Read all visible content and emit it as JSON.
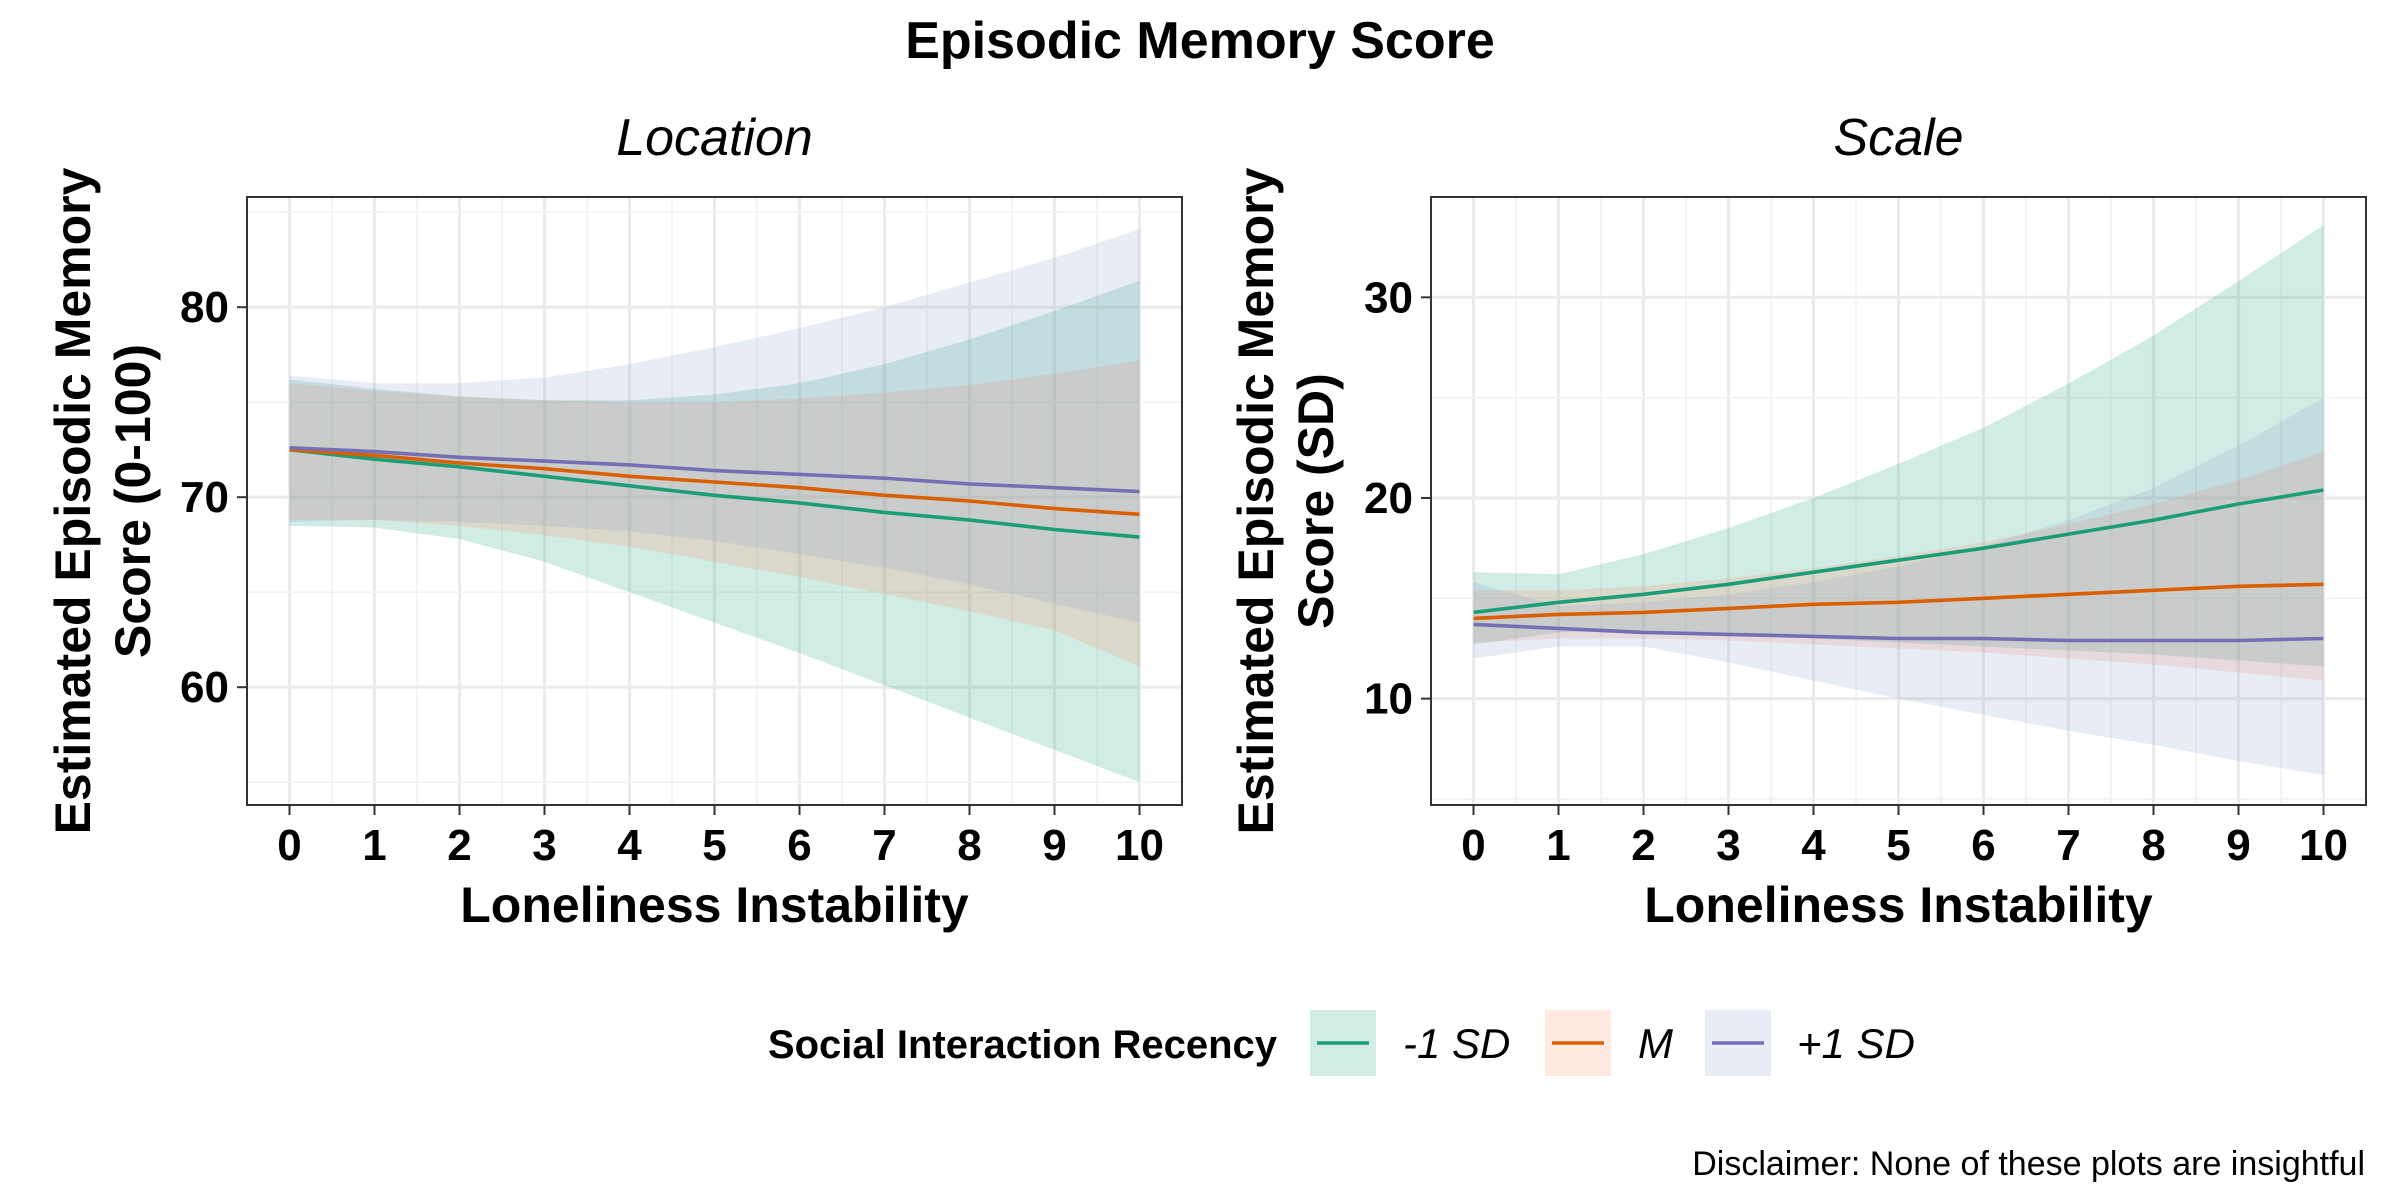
{
  "title": "Episodic Memory Score",
  "caption": "Disclaimer: None of these plots are insightful",
  "legend": {
    "title": "Social Interaction Recency",
    "entries": [
      {
        "label": "-1 SD",
        "color": "#1b9e77",
        "fill": "#1b9e77"
      },
      {
        "label": "M",
        "color": "#d95f02",
        "fill": "#fc8d62"
      },
      {
        "label": "+1 SD",
        "color": "#7570b3",
        "fill": "#8da0cb"
      }
    ],
    "placement": "bottom"
  },
  "chart_data": [
    {
      "type": "line",
      "panel_title": "Location",
      "xlabel": "Loneliness Instability",
      "ylabel_lines": [
        "Estimated Episodic Memory",
        "Score (0-100)"
      ],
      "xlim": [
        -0.5,
        10.5
      ],
      "ylim": [
        53.8,
        85.8
      ],
      "xticks": [
        0,
        1,
        2,
        3,
        4,
        5,
        6,
        7,
        8,
        9,
        10
      ],
      "yticks": [
        60,
        70,
        80
      ],
      "grid": true,
      "x": [
        0,
        1,
        2,
        3,
        4,
        5,
        6,
        7,
        8,
        9,
        10
      ],
      "series": [
        {
          "name": "-1 SD",
          "values": [
            72.5,
            72.0,
            71.6,
            71.1,
            70.6,
            70.1,
            69.7,
            69.2,
            68.8,
            68.3,
            67.9
          ],
          "lower": [
            68.5,
            68.4,
            67.8,
            66.6,
            65.0,
            63.4,
            61.8,
            60.1,
            58.4,
            56.7,
            55.0
          ],
          "upper": [
            76.2,
            75.7,
            75.3,
            75.1,
            75.1,
            75.4,
            76.0,
            77.0,
            78.3,
            79.8,
            81.4
          ]
        },
        {
          "name": "M",
          "values": [
            72.5,
            72.2,
            71.8,
            71.5,
            71.1,
            70.8,
            70.5,
            70.1,
            69.8,
            69.4,
            69.1
          ],
          "lower": [
            68.8,
            68.8,
            68.5,
            68.0,
            67.4,
            66.6,
            65.8,
            64.9,
            64.0,
            63.0,
            61.1
          ],
          "upper": [
            76.0,
            75.6,
            75.3,
            75.1,
            75.0,
            75.0,
            75.2,
            75.5,
            75.9,
            76.5,
            77.2
          ]
        },
        {
          "name": "+1 SD",
          "values": [
            72.6,
            72.4,
            72.1,
            71.9,
            71.7,
            71.4,
            71.2,
            71.0,
            70.7,
            70.5,
            70.3
          ],
          "lower": [
            68.7,
            68.8,
            68.7,
            68.5,
            68.2,
            67.7,
            67.0,
            66.3,
            65.4,
            64.4,
            63.4
          ],
          "upper": [
            76.4,
            76.0,
            76.0,
            76.3,
            77.0,
            77.9,
            78.9,
            80.0,
            81.3,
            82.6,
            84.1
          ]
        }
      ]
    },
    {
      "type": "line",
      "panel_title": "Scale",
      "xlabel": "Loneliness Instability",
      "ylabel_lines": [
        "Estimated Episodic Memory",
        "Score (SD)"
      ],
      "xlim": [
        -0.5,
        10.5
      ],
      "ylim": [
        4.7,
        35.0
      ],
      "xticks": [
        0,
        1,
        2,
        3,
        4,
        5,
        6,
        7,
        8,
        9,
        10
      ],
      "yticks": [
        10,
        20,
        30
      ],
      "grid": true,
      "x": [
        0,
        1,
        2,
        3,
        4,
        5,
        6,
        7,
        8,
        9,
        10
      ],
      "series": [
        {
          "name": "-1 SD",
          "values": [
            14.3,
            14.8,
            15.2,
            15.7,
            16.3,
            16.9,
            17.5,
            18.2,
            18.9,
            19.7,
            20.4
          ],
          "lower": [
            12.7,
            13.3,
            13.4,
            13.2,
            13.0,
            12.8,
            12.6,
            12.4,
            12.2,
            11.9,
            11.6
          ],
          "upper": [
            16.3,
            16.2,
            17.2,
            18.5,
            20.0,
            21.7,
            23.5,
            25.7,
            28.1,
            30.8,
            33.6
          ]
        },
        {
          "name": "M",
          "values": [
            14.0,
            14.2,
            14.3,
            14.5,
            14.7,
            14.8,
            15.0,
            15.2,
            15.4,
            15.6,
            15.7
          ],
          "lower": [
            12.8,
            13.0,
            13.0,
            12.9,
            12.7,
            12.5,
            12.3,
            12.0,
            11.7,
            11.3,
            10.9
          ],
          "upper": [
            15.4,
            15.4,
            15.6,
            16.0,
            16.5,
            17.1,
            17.8,
            18.7,
            19.7,
            20.9,
            22.3
          ]
        },
        {
          "name": "+1 SD",
          "values": [
            13.7,
            13.5,
            13.3,
            13.2,
            13.1,
            13.0,
            13.0,
            12.9,
            12.9,
            12.9,
            13.0
          ],
          "lower": [
            12.0,
            12.6,
            12.6,
            11.8,
            10.9,
            10.0,
            9.2,
            8.4,
            7.7,
            6.9,
            6.2
          ],
          "upper": [
            15.8,
            14.6,
            14.8,
            15.2,
            15.8,
            16.6,
            17.6,
            18.9,
            20.5,
            22.6,
            25.0
          ]
        }
      ]
    }
  ]
}
